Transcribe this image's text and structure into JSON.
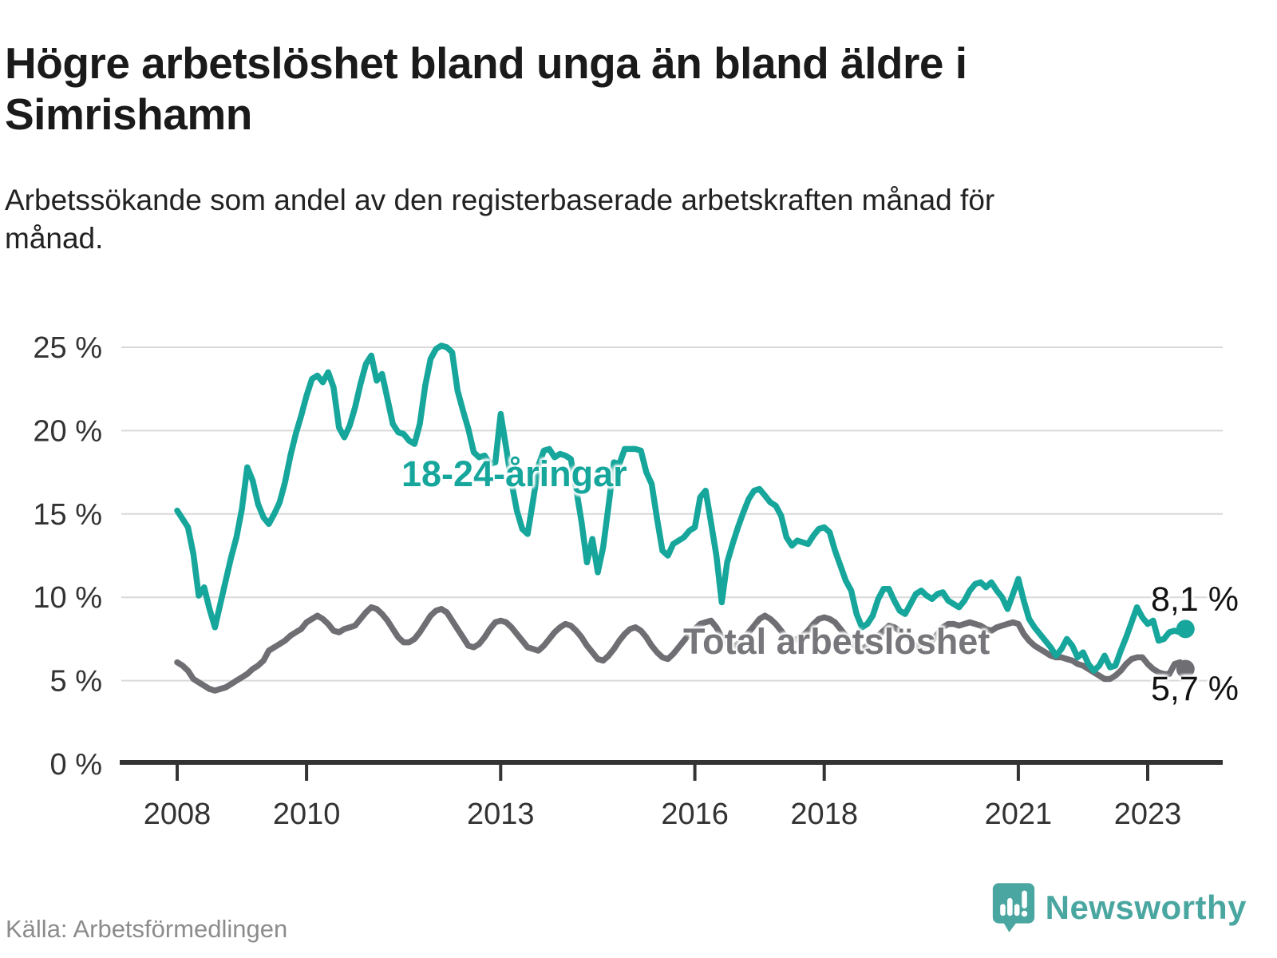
{
  "header": {
    "title": "Högre arbetslöshet bland unga än bland äldre i Simrishamn",
    "subtitle": "Arbetssökande som andel av den registerbaserade arbetskraften månad för månad."
  },
  "footer": {
    "source": "Källa: Arbetsförmedlingen",
    "brand": "Newsworthy"
  },
  "colors": {
    "young": "#16a69c",
    "total": "#6e6e73",
    "axis": "#333333",
    "grid": "#d9d9d9",
    "end_label": "#111111",
    "source_text": "#8c8c8c",
    "brand_teal": "#4aa6a0",
    "title": "#1a1a1a"
  },
  "chart_data": {
    "type": "line",
    "title": "Högre arbetslöshet bland unga än bland äldre i Simrishamn",
    "subtitle": "Arbetssökande som andel av den registerbaserade arbetskraften månad för månad.",
    "x_start": "2008-01",
    "x_end": "2023-08",
    "x_interval": "monthly",
    "xlabel": "",
    "ylabel": "",
    "ylim": [
      0,
      26.5
    ],
    "grid": "horizontal",
    "legend_position": "inline-labels",
    "y_ticks": [
      0,
      5,
      10,
      15,
      20,
      25
    ],
    "y_tick_labels": [
      "0 %",
      "5 %",
      "10 %",
      "15 %",
      "20 %",
      "25 %"
    ],
    "x_ticks": [
      {
        "label": "2008",
        "year": 2008
      },
      {
        "label": "2010",
        "year": 2010
      },
      {
        "label": "2013",
        "year": 2013
      },
      {
        "label": "2016",
        "year": 2016
      },
      {
        "label": "2018",
        "year": 2018
      },
      {
        "label": "2021",
        "year": 2021
      },
      {
        "label": "2023",
        "year": 2023
      }
    ],
    "series": [
      {
        "name": "18-24-åringar",
        "color": "#16a69c",
        "end_label": "8,1 %",
        "end_value": 8.1,
        "values": [
          15.2,
          14.7,
          14.2,
          12.6,
          10.1,
          10.6,
          9.3,
          8.2,
          9.6,
          11.0,
          12.4,
          13.6,
          15.3,
          17.8,
          17.0,
          15.6,
          14.8,
          14.4,
          15.0,
          15.7,
          16.9,
          18.5,
          19.8,
          20.9,
          22.1,
          23.1,
          23.3,
          22.9,
          23.5,
          22.6,
          20.2,
          19.6,
          20.3,
          21.4,
          22.8,
          24.0,
          24.5,
          23.0,
          23.4,
          21.9,
          20.4,
          19.9,
          19.8,
          19.4,
          19.2,
          20.4,
          22.7,
          24.3,
          24.9,
          25.1,
          25.0,
          24.7,
          22.4,
          21.2,
          20.1,
          18.7,
          18.4,
          18.5,
          18.0,
          18.1,
          21.0,
          19.0,
          16.9,
          15.2,
          14.1,
          13.8,
          15.8,
          17.9,
          18.8,
          18.9,
          18.4,
          18.6,
          18.5,
          18.3,
          16.5,
          14.5,
          12.1,
          13.5,
          11.5,
          13.0,
          15.5,
          18.1,
          18.0,
          18.9,
          18.9,
          18.9,
          18.8,
          17.5,
          16.8,
          14.7,
          12.8,
          12.5,
          13.2,
          13.4,
          13.6,
          14.0,
          14.2,
          16.0,
          16.4,
          14.5,
          12.5,
          9.7,
          12.1,
          13.2,
          14.2,
          15.1,
          15.9,
          16.4,
          16.5,
          16.1,
          15.7,
          15.5,
          14.9,
          13.6,
          13.1,
          13.4,
          13.3,
          13.2,
          13.7,
          14.1,
          14.2,
          13.9,
          12.8,
          11.9,
          11.0,
          10.4,
          9.0,
          8.2,
          8.4,
          8.9,
          9.9,
          10.5,
          10.5,
          9.8,
          9.2,
          9.0,
          9.6,
          10.2,
          10.4,
          10.1,
          9.9,
          10.2,
          10.3,
          9.8,
          9.6,
          9.4,
          9.8,
          10.4,
          10.8,
          10.9,
          10.6,
          10.9,
          10.4,
          10.0,
          9.3,
          10.2,
          11.1,
          9.8,
          8.7,
          8.2,
          7.8,
          7.4,
          7.0,
          6.5,
          6.9,
          7.5,
          7.1,
          6.4,
          6.7,
          6.0,
          5.6,
          5.9,
          6.5,
          5.8,
          5.9,
          6.8,
          7.6,
          8.5,
          9.4,
          8.8,
          8.4,
          8.6,
          7.4,
          7.5,
          7.9,
          8.0,
          7.9,
          8.1
        ]
      },
      {
        "name": "Total arbetslöshet",
        "color": "#6e6e73",
        "end_label": "5,7 %",
        "end_value": 5.7,
        "values": [
          6.1,
          5.9,
          5.6,
          5.1,
          4.9,
          4.7,
          4.5,
          4.4,
          4.5,
          4.6,
          4.8,
          5.0,
          5.2,
          5.4,
          5.7,
          5.9,
          6.2,
          6.8,
          7.0,
          7.2,
          7.4,
          7.7,
          7.9,
          8.1,
          8.5,
          8.7,
          8.9,
          8.7,
          8.4,
          8.0,
          7.9,
          8.1,
          8.2,
          8.3,
          8.7,
          9.1,
          9.4,
          9.3,
          9.0,
          8.6,
          8.1,
          7.6,
          7.3,
          7.3,
          7.5,
          7.9,
          8.4,
          8.9,
          9.2,
          9.3,
          9.1,
          8.6,
          8.1,
          7.6,
          7.1,
          7.0,
          7.2,
          7.6,
          8.1,
          8.5,
          8.6,
          8.5,
          8.2,
          7.8,
          7.4,
          7.0,
          6.9,
          6.8,
          7.1,
          7.5,
          7.9,
          8.2,
          8.4,
          8.3,
          8.0,
          7.6,
          7.1,
          6.7,
          6.3,
          6.2,
          6.5,
          6.9,
          7.4,
          7.8,
          8.1,
          8.2,
          8.0,
          7.6,
          7.1,
          6.7,
          6.4,
          6.3,
          6.6,
          7.0,
          7.4,
          7.8,
          8.1,
          8.4,
          8.5,
          8.6,
          8.2,
          7.6,
          7.2,
          7.0,
          7.2,
          7.5,
          7.9,
          8.3,
          8.7,
          8.9,
          8.7,
          8.4,
          8.0,
          7.6,
          7.4,
          7.5,
          7.7,
          8.0,
          8.4,
          8.7,
          8.8,
          8.7,
          8.5,
          8.1,
          7.7,
          7.3,
          7.0,
          6.9,
          7.1,
          7.3,
          7.7,
          8.0,
          8.3,
          8.2,
          8.0,
          7.7,
          7.4,
          7.1,
          7.0,
          7.1,
          7.4,
          7.8,
          8.2,
          8.4,
          8.4,
          8.3,
          8.4,
          8.5,
          8.4,
          8.3,
          8.1,
          8.0,
          8.2,
          8.3,
          8.4,
          8.5,
          8.4,
          7.8,
          7.4,
          7.1,
          6.9,
          6.7,
          6.5,
          6.4,
          6.4,
          6.3,
          6.2,
          6.0,
          5.9,
          5.7,
          5.5,
          5.3,
          5.1,
          5.1,
          5.3,
          5.6,
          6.0,
          6.3,
          6.4,
          6.4,
          6.0,
          5.7,
          5.5,
          5.4,
          5.4,
          6.0,
          6.1,
          5.7
        ]
      }
    ]
  }
}
